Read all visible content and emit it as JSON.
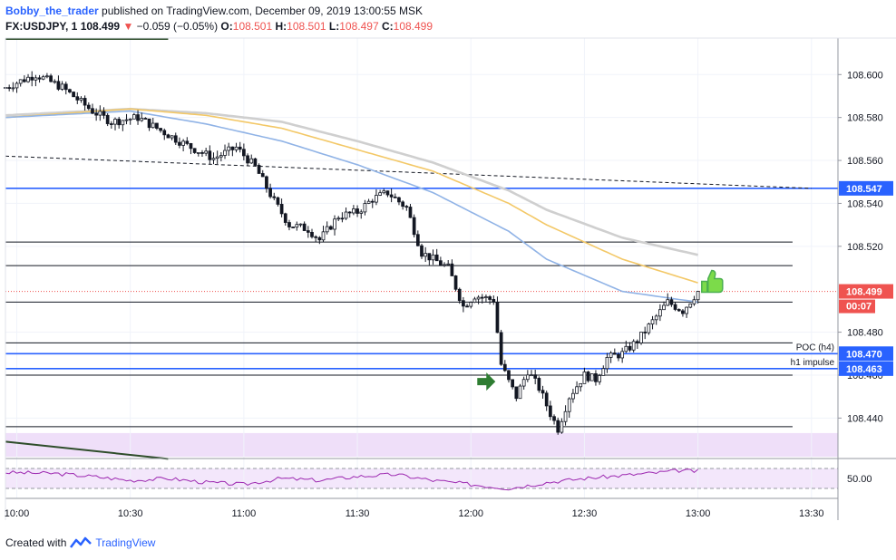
{
  "header": {
    "author": "Bobby_the_trader",
    "published_text": "published on TradingView.com, December 09, 2019 13:00:55 MSK",
    "symbol": "FX:USDJPY, 1",
    "last": "108.499",
    "arrow": "▼",
    "change": "−0.059 (−0.05%)",
    "o_label": "O:",
    "o_value": "108.501",
    "h_label": "H:",
    "h_value": "108.501",
    "l_label": "L:",
    "l_value": "108.497",
    "c_label": "C:",
    "c_value": "108.499"
  },
  "footer": {
    "created_with": "Created with",
    "brand": "TradingView"
  },
  "colors": {
    "up": "#ffffff",
    "down": "#131722",
    "ma_blue": "#90b3e6",
    "ma_yellow": "#f3c867",
    "ma_grey": "#cfcfcf",
    "level_blue": "#2962ff",
    "rsi": "#9c27b0",
    "zone": "#e9d4f7",
    "arrow_green": "#2e7d32",
    "thumb_green": "#4caf50"
  },
  "chart_data": {
    "type": "candlestick",
    "instrument": "FX:USDJPY",
    "timeframe": "1",
    "xlim": [
      "09:57",
      "13:37"
    ],
    "ylim": [
      108.422,
      108.617
    ],
    "x_ticks": [
      "10:00",
      "10:30",
      "11:00",
      "11:30",
      "12:00",
      "12:30",
      "13:00",
      "13:30"
    ],
    "y_ticks": [
      "108.600",
      "108.580",
      "108.560",
      "108.540",
      "108.520",
      "108.480",
      "108.460",
      "108.440"
    ],
    "price_labels": [
      {
        "value": 108.547,
        "text": "108.547",
        "color": "#2962ff"
      },
      {
        "value": 108.499,
        "text": "108.499",
        "color": "#ef5350"
      },
      {
        "value": 108.47,
        "text": "108.470",
        "color": "#2962ff"
      },
      {
        "value": 108.463,
        "text": "108.463",
        "color": "#2962ff"
      }
    ],
    "countdown": "00:07",
    "hlines_black": [
      108.522,
      108.511,
      108.494,
      108.475,
      108.46,
      108.436
    ],
    "hlines_blue": [
      {
        "value": 108.547,
        "label": ""
      },
      {
        "value": 108.47,
        "label": "POC (h4)"
      },
      {
        "value": 108.463,
        "label": "h1 impulse"
      }
    ],
    "price_anchors": [
      [
        "09:57",
        108.594
      ],
      [
        "10:05",
        108.6
      ],
      [
        "10:12",
        108.594
      ],
      [
        "10:20",
        108.583
      ],
      [
        "10:25",
        108.578
      ],
      [
        "10:32",
        108.58
      ],
      [
        "10:38",
        108.574
      ],
      [
        "10:45",
        108.567
      ],
      [
        "10:52",
        108.561
      ],
      [
        "10:58",
        108.566
      ],
      [
        "11:03",
        108.557
      ],
      [
        "11:08",
        108.541
      ],
      [
        "11:12",
        108.53
      ],
      [
        "11:17",
        108.528
      ],
      [
        "11:20",
        108.523
      ],
      [
        "11:25",
        108.534
      ],
      [
        "11:30",
        108.536
      ],
      [
        "11:34",
        108.542
      ],
      [
        "11:38",
        108.545
      ],
      [
        "11:43",
        108.538
      ],
      [
        "11:47",
        108.517
      ],
      [
        "11:50",
        108.514
      ],
      [
        "11:54",
        108.51
      ],
      [
        "11:58",
        108.492
      ],
      [
        "12:01",
        108.497
      ],
      [
        "12:06",
        108.495
      ],
      [
        "12:08",
        108.465
      ],
      [
        "12:10",
        108.457
      ],
      [
        "12:12",
        108.45
      ],
      [
        "12:15",
        108.462
      ],
      [
        "12:18",
        108.454
      ],
      [
        "12:21",
        108.442
      ],
      [
        "12:23",
        108.435
      ],
      [
        "12:26",
        108.45
      ],
      [
        "12:30",
        108.46
      ],
      [
        "12:33",
        108.458
      ],
      [
        "12:36",
        108.468
      ],
      [
        "12:40",
        108.47
      ],
      [
        "12:44",
        108.476
      ],
      [
        "12:48",
        108.485
      ],
      [
        "12:52",
        108.494
      ],
      [
        "12:56",
        108.49
      ],
      [
        "13:00",
        108.499
      ]
    ],
    "ma_blue": [
      [
        "09:57",
        108.58
      ],
      [
        "10:30",
        108.583
      ],
      [
        "10:50",
        108.577
      ],
      [
        "11:10",
        108.569
      ],
      [
        "11:30",
        108.558
      ],
      [
        "11:50",
        108.545
      ],
      [
        "12:10",
        108.527
      ],
      [
        "12:20",
        108.514
      ],
      [
        "12:40",
        108.499
      ],
      [
        "13:00",
        108.494
      ]
    ],
    "ma_yellow": [
      [
        "09:57",
        108.58
      ],
      [
        "10:30",
        108.584
      ],
      [
        "10:50",
        108.581
      ],
      [
        "11:10",
        108.575
      ],
      [
        "11:30",
        108.565
      ],
      [
        "11:50",
        108.555
      ],
      [
        "12:10",
        108.54
      ],
      [
        "12:20",
        108.53
      ],
      [
        "12:40",
        108.514
      ],
      [
        "13:00",
        108.503
      ]
    ],
    "ma_grey": [
      [
        "09:57",
        108.581
      ],
      [
        "10:30",
        108.584
      ],
      [
        "10:50",
        108.582
      ],
      [
        "11:10",
        108.578
      ],
      [
        "11:30",
        108.569
      ],
      [
        "11:50",
        108.559
      ],
      [
        "12:10",
        108.546
      ],
      [
        "12:20",
        108.537
      ],
      [
        "12:40",
        108.524
      ],
      [
        "13:00",
        108.516
      ]
    ],
    "dashed_trendline": [
      [
        "09:57",
        108.562
      ],
      [
        "13:30",
        108.547
      ]
    ],
    "trendline_top": [
      [
        "09:57",
        108.619
      ],
      [
        "10:40",
        108.619
      ]
    ],
    "trendline_bottom": [
      [
        "09:57",
        108.429
      ],
      [
        "10:40",
        108.421
      ]
    ],
    "rsi": {
      "ylim": [
        30,
        70
      ],
      "ticks": [
        "50.00"
      ],
      "upper": 60,
      "lower": 40,
      "anchors": [
        [
          "09:57",
          56
        ],
        [
          "10:10",
          55
        ],
        [
          "10:20",
          52
        ],
        [
          "10:30",
          48
        ],
        [
          "10:40",
          50
        ],
        [
          "10:50",
          46
        ],
        [
          "11:00",
          44
        ],
        [
          "11:10",
          50
        ],
        [
          "11:20",
          48
        ],
        [
          "11:30",
          52
        ],
        [
          "11:40",
          54
        ],
        [
          "11:50",
          48
        ],
        [
          "12:00",
          44
        ],
        [
          "12:10",
          40
        ],
        [
          "12:20",
          46
        ],
        [
          "12:30",
          50
        ],
        [
          "12:40",
          53
        ],
        [
          "12:50",
          56
        ],
        [
          "12:55",
          58
        ],
        [
          "13:00",
          57
        ]
      ]
    }
  }
}
